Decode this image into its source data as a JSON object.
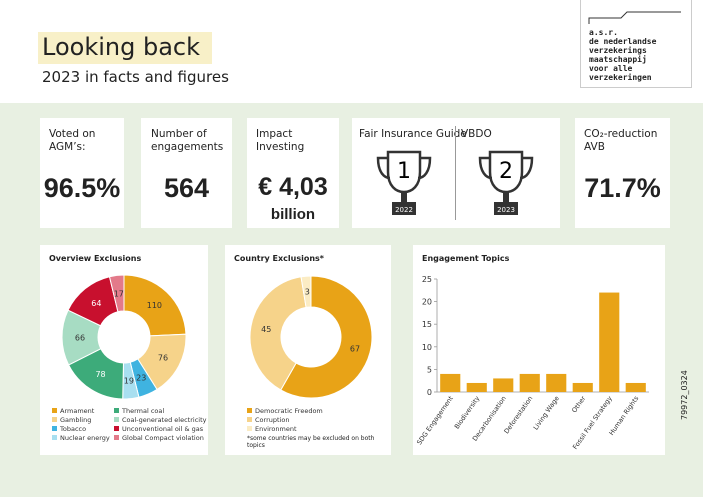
{
  "header": {
    "title": "Looking back",
    "subtitle": "2023 in facts and figures",
    "logo": [
      "a.s.r.",
      "de nederlandse",
      "verzekerings",
      "maatschappij",
      "voor alle",
      "verzekeringen"
    ]
  },
  "kpis": [
    {
      "label": [
        "Voted on",
        "AGM’s:"
      ],
      "value": "96.5%"
    },
    {
      "label": [
        "Number of",
        "engagements"
      ],
      "value": "564"
    },
    {
      "label": [
        "Impact",
        "Investing"
      ],
      "value": "€ 4,03",
      "unit": "billion"
    },
    {
      "label": [
        "CO₂-reduction",
        "AVB"
      ],
      "value": "71.7%"
    }
  ],
  "awards": [
    {
      "name": "Fair Insurance Guide",
      "rank": "1",
      "year": "2022"
    },
    {
      "name": "VBDO",
      "rank": "2",
      "year": "2023"
    }
  ],
  "side_code": "79972_0324",
  "chart_data": [
    {
      "type": "donut",
      "title": "Overview Exclusions",
      "categories": [
        "Armament",
        "Gambling",
        "Tobacco",
        "Nuclear energy",
        "Thermal coal",
        "Coal-generated electricity",
        "Unconventional oil & gas",
        "Global Compact violation"
      ],
      "values": [
        110,
        76,
        23,
        19,
        78,
        66,
        64,
        17
      ],
      "colors": [
        "#e8a317",
        "#f6d38a",
        "#3fb3e0",
        "#a8dff0",
        "#3dab7a",
        "#a7dcc3",
        "#c8102e",
        "#e37a8a"
      ]
    },
    {
      "type": "donut",
      "title": "Country Exclusions*",
      "categories": [
        "Democratic Freedom",
        "Corruption",
        "Environment"
      ],
      "values": [
        67,
        45,
        3
      ],
      "colors": [
        "#e8a317",
        "#f6d38a",
        "#fbecc4"
      ],
      "note": "*some countries may be excluded on both topics"
    },
    {
      "type": "bar",
      "title": "Engagement Topics",
      "categories": [
        "SDG Engagement",
        "Biodiversity",
        "Decarbonisation",
        "Deforestation",
        "Living Wage",
        "Other",
        "Fossil Fuel Strategy",
        "Human Rights"
      ],
      "values": [
        4,
        2,
        3,
        4,
        4,
        2,
        22,
        2
      ],
      "color": "#e8a317",
      "ylim": [
        0,
        25
      ],
      "yticks": [
        0,
        5,
        10,
        15,
        20,
        25
      ]
    }
  ]
}
